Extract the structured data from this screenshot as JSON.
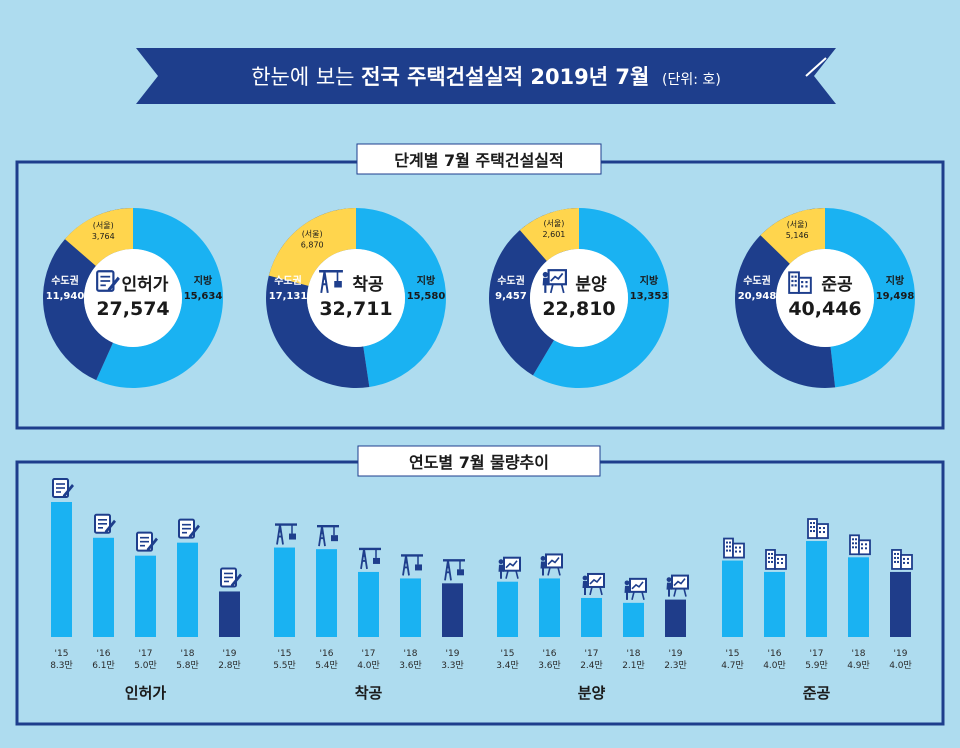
{
  "header": {
    "prefix": "한눈에 보는 ",
    "bold": "전국 주택건설실적 2019년 7월",
    "unit": "(단위: 호)"
  },
  "colors": {
    "background": "#aedcef",
    "navy": "#1e3e8c",
    "light_blue": "#1ab2f2",
    "dark_bar": "#1f3d8a",
    "yellow": "#ffd54d"
  },
  "chart_data": [
    {
      "type": "pie",
      "title": "단계별 7월 주택건설실적",
      "donuts": [
        {
          "name": "인허가",
          "icon": "permit-icon",
          "total": "27,574",
          "slices": [
            {
              "label": "지방",
              "display": "15,634",
              "value": 15634
            },
            {
              "label": "수도권",
              "display": "11,940",
              "value": 11940
            },
            {
              "label": "(서울)",
              "display": "3,764",
              "value": 3764
            }
          ]
        },
        {
          "name": "착공",
          "icon": "crane-icon",
          "total": "32,711",
          "slices": [
            {
              "label": "지방",
              "display": "15,580",
              "value": 15580
            },
            {
              "label": "수도권",
              "display": "17,131",
              "value": 17131
            },
            {
              "label": "(서울)",
              "display": "6,870",
              "value": 6870
            }
          ]
        },
        {
          "name": "분양",
          "icon": "presentation-icon",
          "total": "22,810",
          "slices": [
            {
              "label": "지방",
              "display": "13,353",
              "value": 13353
            },
            {
              "label": "수도권",
              "display": "9,457",
              "value": 9457
            },
            {
              "label": "(서울)",
              "display": "2,601",
              "value": 2601
            }
          ]
        },
        {
          "name": "준공",
          "icon": "building-icon",
          "total": "40,446",
          "slices": [
            {
              "label": "지방",
              "display": "19,498",
              "value": 19498
            },
            {
              "label": "수도권",
              "display": "20,948",
              "value": 20948
            },
            {
              "label": "(서울)",
              "display": "5,146",
              "value": 5146
            }
          ]
        }
      ]
    },
    {
      "type": "bar",
      "title": "연도별 7월 물량추이",
      "groups": [
        {
          "name": "인허가",
          "icon": "permit-icon",
          "bars": [
            {
              "year": "'15",
              "label": "8.3만",
              "value": 8.3
            },
            {
              "year": "'16",
              "label": "6.1만",
              "value": 6.1
            },
            {
              "year": "'17",
              "label": "5.0만",
              "value": 5.0
            },
            {
              "year": "'18",
              "label": "5.8만",
              "value": 5.8
            },
            {
              "year": "'19",
              "label": "2.8만",
              "value": 2.8
            }
          ]
        },
        {
          "name": "착공",
          "icon": "crane-icon",
          "bars": [
            {
              "year": "'15",
              "label": "5.5만",
              "value": 5.5
            },
            {
              "year": "'16",
              "label": "5.4만",
              "value": 5.4
            },
            {
              "year": "'17",
              "label": "4.0만",
              "value": 4.0
            },
            {
              "year": "'18",
              "label": "3.6만",
              "value": 3.6
            },
            {
              "year": "'19",
              "label": "3.3만",
              "value": 3.3
            }
          ]
        },
        {
          "name": "분양",
          "icon": "presentation-icon",
          "bars": [
            {
              "year": "'15",
              "label": "3.4만",
              "value": 3.4
            },
            {
              "year": "'16",
              "label": "3.6만",
              "value": 3.6
            },
            {
              "year": "'17",
              "label": "2.4만",
              "value": 2.4
            },
            {
              "year": "'18",
              "label": "2.1만",
              "value": 2.1
            },
            {
              "year": "'19",
              "label": "2.3만",
              "value": 2.3
            }
          ]
        },
        {
          "name": "준공",
          "icon": "building-icon",
          "bars": [
            {
              "year": "'15",
              "label": "4.7만",
              "value": 4.7
            },
            {
              "year": "'16",
              "label": "4.0만",
              "value": 4.0
            },
            {
              "year": "'17",
              "label": "5.9만",
              "value": 5.9
            },
            {
              "year": "'18",
              "label": "4.9만",
              "value": 4.9
            },
            {
              "year": "'19",
              "label": "4.0만",
              "value": 4.0
            }
          ]
        }
      ]
    }
  ]
}
